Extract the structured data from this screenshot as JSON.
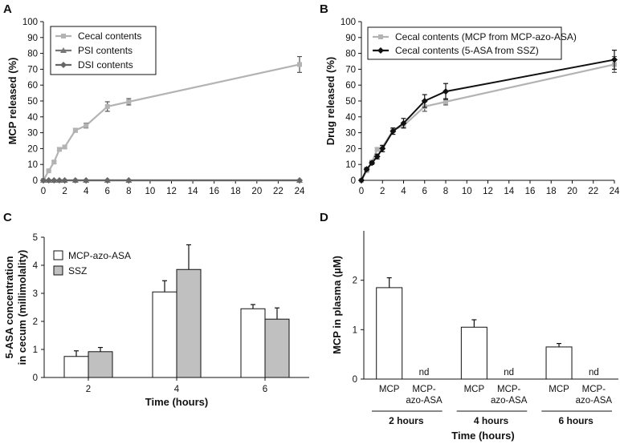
{
  "chart_data": [
    {
      "panel": "A",
      "type": "line",
      "xlabel": "",
      "ylabel": "MCP released (%)",
      "xlim": [
        0,
        24
      ],
      "ylim": [
        0,
        100
      ],
      "xticks": [
        0,
        2,
        4,
        6,
        8,
        10,
        12,
        14,
        16,
        18,
        20,
        22,
        24
      ],
      "yticks": [
        0,
        10,
        20,
        30,
        40,
        50,
        60,
        70,
        80,
        90,
        100
      ],
      "legend_position": "top-left",
      "series": [
        {
          "name": "Cecal contents",
          "color": "#b3b3b3",
          "marker": "square",
          "x": [
            0,
            0.5,
            1,
            1.5,
            2,
            3,
            4,
            6,
            8,
            24
          ],
          "y": [
            0,
            6,
            11.5,
            19.5,
            21,
            31.5,
            34.5,
            46.5,
            49.5,
            73
          ],
          "err": [
            0,
            0.5,
            0.8,
            1,
            1,
            1.2,
            1.5,
            3,
            2,
            5
          ]
        },
        {
          "name": "PSI contents",
          "color": "#777777",
          "marker": "triangle",
          "x": [
            0,
            0.5,
            1,
            1.5,
            2,
            3,
            4,
            6,
            8,
            24
          ],
          "y": [
            0,
            0,
            0,
            0,
            0,
            0,
            0,
            0,
            0,
            0
          ]
        },
        {
          "name": "DSI contents",
          "color": "#666666",
          "marker": "diamond",
          "x": [
            0,
            0.5,
            1,
            1.5,
            2,
            3,
            4,
            6,
            8,
            24
          ],
          "y": [
            0,
            0,
            0,
            0,
            0,
            0,
            0,
            0,
            0,
            0
          ]
        }
      ]
    },
    {
      "panel": "B",
      "type": "line",
      "xlabel": "",
      "ylabel": "Drug released (%)",
      "xlim": [
        0,
        24
      ],
      "ylim": [
        0,
        100
      ],
      "xticks": [
        0,
        2,
        4,
        6,
        8,
        10,
        12,
        14,
        16,
        18,
        20,
        22,
        24
      ],
      "yticks": [
        0,
        10,
        20,
        30,
        40,
        50,
        60,
        70,
        80,
        90,
        100
      ],
      "legend_position": "top-left",
      "series": [
        {
          "name": "Cecal contents (MCP from MCP-azo-ASA)",
          "color": "#b3b3b3",
          "marker": "square",
          "x": [
            0,
            0.5,
            1,
            1.5,
            2,
            3,
            4,
            6,
            8,
            24
          ],
          "y": [
            0,
            6,
            11.5,
            19.5,
            21,
            31.5,
            34.5,
            46.5,
            49.5,
            73
          ],
          "err": [
            0,
            0.5,
            0.8,
            1,
            1,
            1.2,
            1.5,
            3,
            2,
            5
          ]
        },
        {
          "name": "Cecal contents (5-ASA from SSZ)",
          "color": "#111111",
          "marker": "diamond",
          "x": [
            0,
            0.5,
            1,
            1.5,
            2,
            3,
            4,
            6,
            8,
            24
          ],
          "y": [
            0,
            7,
            11,
            15,
            20,
            31,
            36,
            50,
            56,
            76
          ],
          "err": [
            0,
            1,
            1,
            1.5,
            2,
            2,
            3,
            4,
            5,
            6
          ]
        }
      ]
    },
    {
      "panel": "C",
      "type": "bar",
      "xlabel": "Time (hours)",
      "ylabel": [
        "5-ASA concentration",
        "in cecum (millimolality)"
      ],
      "ylim": [
        0,
        5
      ],
      "yticks": [
        0,
        1,
        2,
        3,
        4,
        5
      ],
      "categories": [
        "2",
        "4",
        "6"
      ],
      "legend_position": "top-left",
      "series": [
        {
          "name": "MCP-azo-ASA",
          "color": "#ffffff",
          "values": [
            0.75,
            3.05,
            2.45
          ],
          "err": [
            0.2,
            0.4,
            0.15
          ]
        },
        {
          "name": "SSZ",
          "color": "#c0c0c0",
          "values": [
            0.92,
            3.85,
            2.08
          ],
          "err": [
            0.15,
            0.88,
            0.4
          ]
        }
      ]
    },
    {
      "panel": "D",
      "type": "bar",
      "xlabel": "Time (hours)",
      "ylabel": "MCP in plasma (µM)",
      "ylim": [
        0,
        3
      ],
      "yticks": [
        0,
        1,
        2
      ],
      "groups": [
        "2 hours",
        "4 hours",
        "6 hours"
      ],
      "bar_labels": [
        "MCP",
        "MCP-\nazo-ASA"
      ],
      "nd_label": "nd",
      "series": [
        {
          "name": "MCP",
          "color": "#ffffff",
          "values": [
            1.85,
            1.05,
            0.65
          ],
          "err": [
            0.2,
            0.15,
            0.07
          ]
        },
        {
          "name": "MCP-azo-ASA",
          "color": "#ffffff",
          "values": [
            null,
            null,
            null
          ],
          "err": [
            null,
            null,
            null
          ]
        }
      ]
    }
  ]
}
